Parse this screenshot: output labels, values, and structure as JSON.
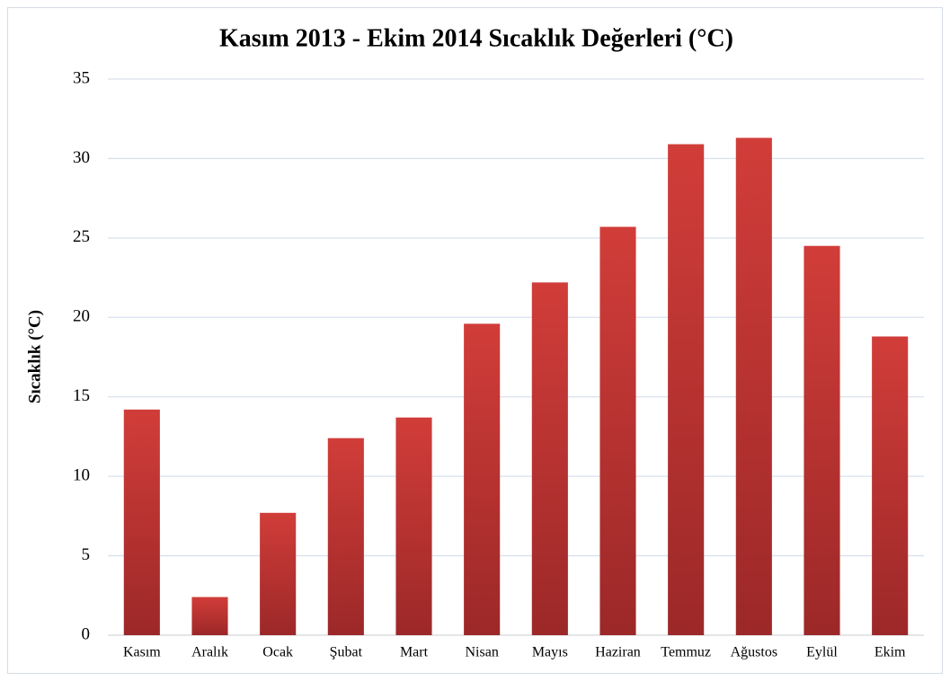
{
  "chart_data": {
    "type": "bar",
    "title": "Kasım 2013 - Ekim 2014 Sıcaklık Değerleri (°C)",
    "y_label": "Sıcaklık (°C)",
    "categories": [
      "Kasım",
      "Aralık",
      "Ocak",
      "Şubat",
      "Mart",
      "Nisan",
      "Mayıs",
      "Haziran",
      "Temmuz",
      "Ağustos",
      "Eylül",
      "Ekim"
    ],
    "values": [
      14.2,
      2.4,
      7.7,
      12.4,
      13.7,
      19.6,
      22.2,
      25.7,
      30.9,
      31.3,
      24.5,
      18.8
    ],
    "color": "#d13d39",
    "ylim": [
      0,
      35
    ],
    "yticks": [
      0,
      5,
      10,
      15,
      20,
      25,
      30,
      35
    ],
    "grid": true
  }
}
